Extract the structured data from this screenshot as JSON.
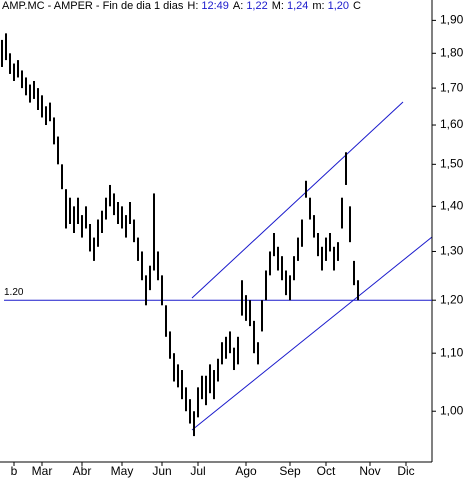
{
  "chart_data": {
    "type": "ohlc",
    "header": {
      "title": "AMP.MC - AMPER - Fin de dia 1 dias",
      "fields": [
        {
          "label": "H:",
          "value": "12:49"
        },
        {
          "label": "A:",
          "value": "1,22"
        },
        {
          "label": "M:",
          "value": "1,24"
        },
        {
          "label": "m:",
          "value": "1,20"
        },
        {
          "label": "C"
        }
      ]
    },
    "categories": [
      null,
      null,
      null,
      "b",
      null,
      null,
      null,
      null,
      null,
      null,
      "Mar",
      null,
      null,
      null,
      null,
      null,
      null,
      null,
      null,
      null,
      "Abr",
      null,
      null,
      null,
      null,
      null,
      null,
      null,
      null,
      null,
      "May",
      null,
      null,
      null,
      null,
      null,
      null,
      null,
      null,
      null,
      "Jun",
      null,
      null,
      null,
      null,
      null,
      null,
      null,
      null,
      "Jul",
      null,
      null,
      null,
      null,
      null,
      null,
      null,
      null,
      null,
      null,
      null,
      "Ago",
      null,
      null,
      null,
      null,
      null,
      null,
      null,
      null,
      null,
      null,
      "Sep",
      null,
      null,
      null,
      null,
      null,
      null,
      null,
      null,
      "Oct",
      null,
      null,
      null,
      null,
      null,
      null,
      null,
      null,
      null,
      null,
      "Nov",
      null,
      null,
      null,
      null,
      null,
      null,
      null,
      null,
      "Dic",
      null,
      null,
      null,
      null,
      null,
      null
    ],
    "high": [
      1.84,
      1.86,
      1.8,
      1.77,
      1.78,
      1.75,
      1.73,
      1.71,
      1.72,
      1.7,
      1.68,
      1.65,
      1.66,
      1.62,
      1.57,
      1.5,
      1.44,
      1.42,
      1.4,
      1.42,
      1.38,
      1.4,
      1.36,
      1.33,
      1.37,
      1.39,
      1.42,
      1.45,
      1.43,
      1.41,
      1.4,
      1.38,
      1.41,
      1.37,
      1.33,
      1.3,
      1.25,
      1.27,
      1.43,
      1.3,
      1.25,
      1.19,
      1.14,
      1.1,
      1.08,
      1.07,
      1.04,
      1.02,
      1.0,
      1.04,
      1.06,
      1.06,
      1.08,
      1.07,
      1.09,
      1.12,
      1.13,
      1.14,
      1.11,
      1.13,
      1.24,
      1.21,
      1.2,
      1.16,
      1.12,
      1.2,
      1.26,
      1.3,
      1.34,
      1.31,
      1.29,
      1.26,
      1.25,
      1.29,
      1.33,
      1.37,
      1.46,
      1.42,
      1.38,
      1.34,
      1.31,
      1.33,
      1.34,
      1.31,
      1.32,
      1.42,
      1.53,
      1.4,
      1.28,
      1.24,
      null,
      null,
      null,
      null,
      null,
      null,
      null,
      null,
      null,
      null,
      null,
      null,
      null,
      null,
      null,
      null,
      null,
      null
    ],
    "low": [
      1.76,
      1.78,
      1.74,
      1.72,
      1.73,
      1.7,
      1.68,
      1.66,
      1.67,
      1.64,
      1.62,
      1.6,
      1.61,
      1.55,
      1.5,
      1.44,
      1.35,
      1.36,
      1.34,
      1.36,
      1.33,
      1.35,
      1.3,
      1.28,
      1.31,
      1.34,
      1.37,
      1.4,
      1.38,
      1.36,
      1.35,
      1.33,
      1.36,
      1.32,
      1.28,
      1.24,
      1.19,
      1.22,
      1.26,
      1.24,
      1.19,
      1.13,
      1.09,
      1.05,
      1.04,
      1.02,
      1.0,
      0.98,
      0.96,
      0.99,
      1.02,
      1.01,
      1.03,
      1.02,
      1.05,
      1.08,
      1.09,
      1.1,
      1.07,
      1.08,
      1.17,
      1.16,
      1.15,
      1.1,
      1.08,
      1.14,
      1.2,
      1.25,
      1.29,
      1.26,
      1.24,
      1.21,
      1.2,
      1.24,
      1.28,
      1.31,
      1.42,
      1.37,
      1.33,
      1.29,
      1.26,
      1.28,
      1.3,
      1.26,
      1.28,
      1.35,
      1.45,
      1.32,
      1.23,
      1.2,
      null,
      null,
      null,
      null,
      null,
      null,
      null,
      null,
      null,
      null,
      null,
      null,
      null,
      null,
      null,
      null,
      null,
      null
    ],
    "color": "#000000",
    "log_y": true,
    "ylim": [
      0.92,
      1.92
    ],
    "yticks": [
      {
        "value": 1.0,
        "label": "1,00"
      },
      {
        "value": 1.1,
        "label": "1,10"
      },
      {
        "value": 1.2,
        "label": "1,20"
      },
      {
        "value": 1.3,
        "label": "1,30"
      },
      {
        "value": 1.4,
        "label": "1,40"
      },
      {
        "value": 1.5,
        "label": "1,50"
      },
      {
        "value": 1.6,
        "label": "1,60"
      },
      {
        "value": 1.7,
        "label": "1,70"
      },
      {
        "value": 1.8,
        "label": "1,80"
      },
      {
        "value": 1.9,
        "label": "1,90"
      }
    ],
    "hline": {
      "value": 1.2,
      "label": "1.20",
      "color": "#1a1acc"
    }
  }
}
